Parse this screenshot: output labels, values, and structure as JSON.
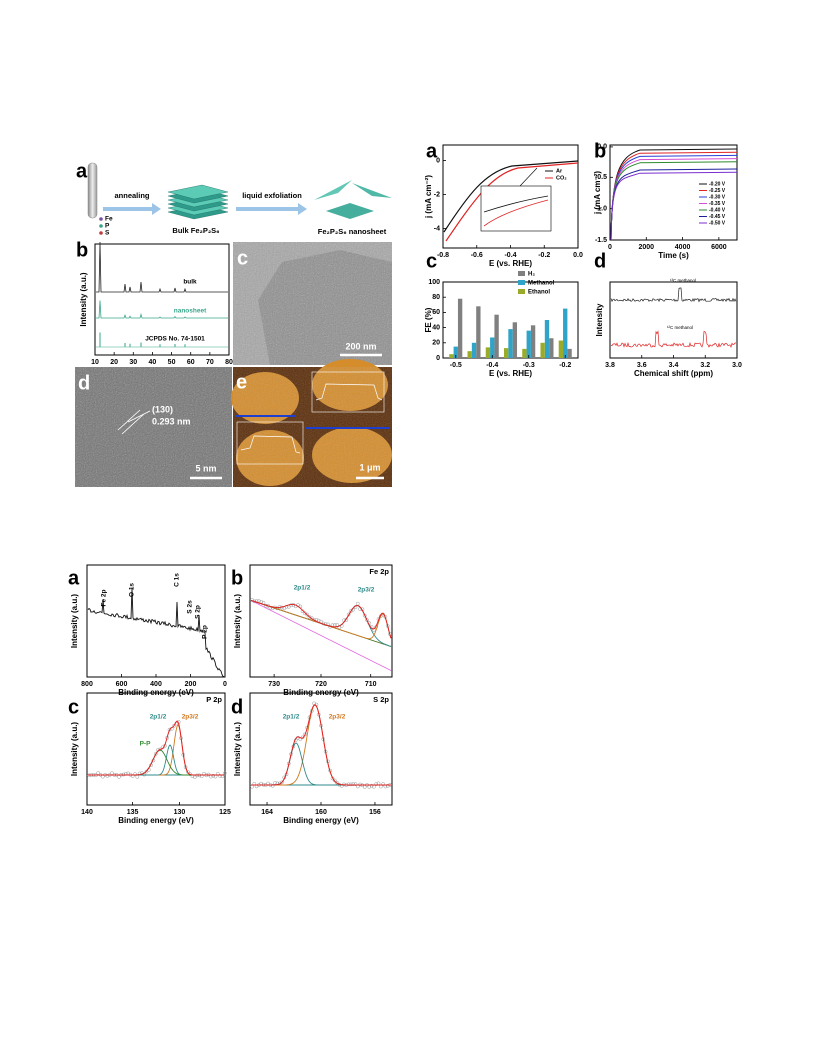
{
  "figure1": {
    "a": {
      "label": "a",
      "step1": "annealing",
      "step2": "liquid exfoliation",
      "legend": [
        "Fe",
        "P",
        "S"
      ],
      "bulk": "Bulk Fe₂P₂S₆",
      "nanosheet": "Fe₂P₂S₆ nanosheet"
    },
    "b": {
      "label": "b",
      "ylabel": "Intensity (a.u.)",
      "xlabel": "2θ (degree)",
      "xticks": [
        "10",
        "20",
        "30",
        "40",
        "50",
        "60",
        "70",
        "80"
      ],
      "traces": [
        "bulk",
        "nanosheet",
        "JCPDS No. 74-1501"
      ]
    },
    "c": {
      "label": "c",
      "scale": "200 nm"
    },
    "d": {
      "label": "d",
      "plane": "(130)",
      "spacing": "0.293 nm",
      "scale": "5 nm"
    },
    "e": {
      "label": "e",
      "scale": "1 μm"
    }
  },
  "figure2": {
    "a": {
      "label": "a",
      "ylabel": "j (mA cm⁻²)",
      "xlabel": "E (vs. RHE)",
      "xticks": [
        "-0.8",
        "-0.6",
        "-0.4",
        "-0.2",
        "0.0"
      ],
      "yticks": [
        "0",
        "-2",
        "-4"
      ],
      "legend": [
        "Ar",
        "CO₂"
      ]
    },
    "b": {
      "label": "b",
      "ylabel": "j (mA cm⁻²)",
      "xlabel": "Time (s)",
      "xticks": [
        "0",
        "2000",
        "4000",
        "6000"
      ],
      "yticks": [
        "0.0",
        "-0.5",
        "-1.0",
        "-1.5"
      ],
      "legend": [
        "-0.20 V",
        "-0.25 V",
        "-0.30 V",
        "-0.35 V",
        "-0.40 V",
        "-0.45 V",
        "-0.50 V"
      ]
    },
    "c": {
      "label": "c",
      "ylabel": "FE (%)",
      "xlabel": "E (vs. RHE)",
      "xticks": [
        "-0.5",
        "-0.4",
        "-0.3",
        "-0.2"
      ],
      "ylim": [
        0,
        100
      ],
      "yticks": [
        0,
        20,
        40,
        60,
        80,
        100
      ],
      "series": [
        {
          "name": "H₂",
          "color": "#808080",
          "values": [
            78,
            68,
            57,
            47,
            43,
            26,
            12
          ]
        },
        {
          "name": "Methanol",
          "color": "#2fa3c8",
          "values": [
            15,
            20,
            27,
            38,
            36,
            50,
            65
          ]
        },
        {
          "name": "Ethanol",
          "color": "#9aab2a",
          "values": [
            5,
            9,
            14,
            13,
            12,
            20,
            23
          ]
        }
      ]
    },
    "d": {
      "label": "d",
      "ylabel": "Intensity",
      "xlabel": "Chemical shift (ppm)",
      "xticks": [
        "3.8",
        "3.6",
        "3.4",
        "3.2",
        "3.0"
      ],
      "annotations": [
        "¹³C methanol",
        "¹²C methanol"
      ]
    }
  },
  "figure3": {
    "a": {
      "label": "a",
      "ylabel": "Intensity (a.u.)",
      "xlabel": "Binding energy (eV)",
      "xticks": [
        "800",
        "600",
        "400",
        "200",
        "0"
      ],
      "peaks": [
        "Fe 2p",
        "O 1s",
        "C 1s",
        "S 2s",
        "S 2p",
        "P 2p"
      ]
    },
    "b": {
      "label": "b",
      "title": "Fe 2p",
      "ylabel": "Intensity (a.u.)",
      "xlabel": "Binding energy (eV)",
      "xticks": [
        "730",
        "720",
        "710"
      ],
      "peaks": [
        "2p1/2",
        "2p3/2"
      ]
    },
    "c": {
      "label": "c",
      "title": "P 2p",
      "ylabel": "Intensity (a.u.)",
      "xlabel": "Binding energy (eV)",
      "xticks": [
        "140",
        "135",
        "130",
        "125"
      ],
      "peaks": [
        "2p1/2",
        "2p3/2",
        "P-P"
      ]
    },
    "d": {
      "label": "d",
      "title": "S 2p",
      "ylabel": "Intensity (a.u.)",
      "xlabel": "Binding energy (eV)",
      "xticks": [
        "164",
        "160",
        "156"
      ],
      "peaks": [
        "2p1/2",
        "2p3/2"
      ]
    }
  }
}
